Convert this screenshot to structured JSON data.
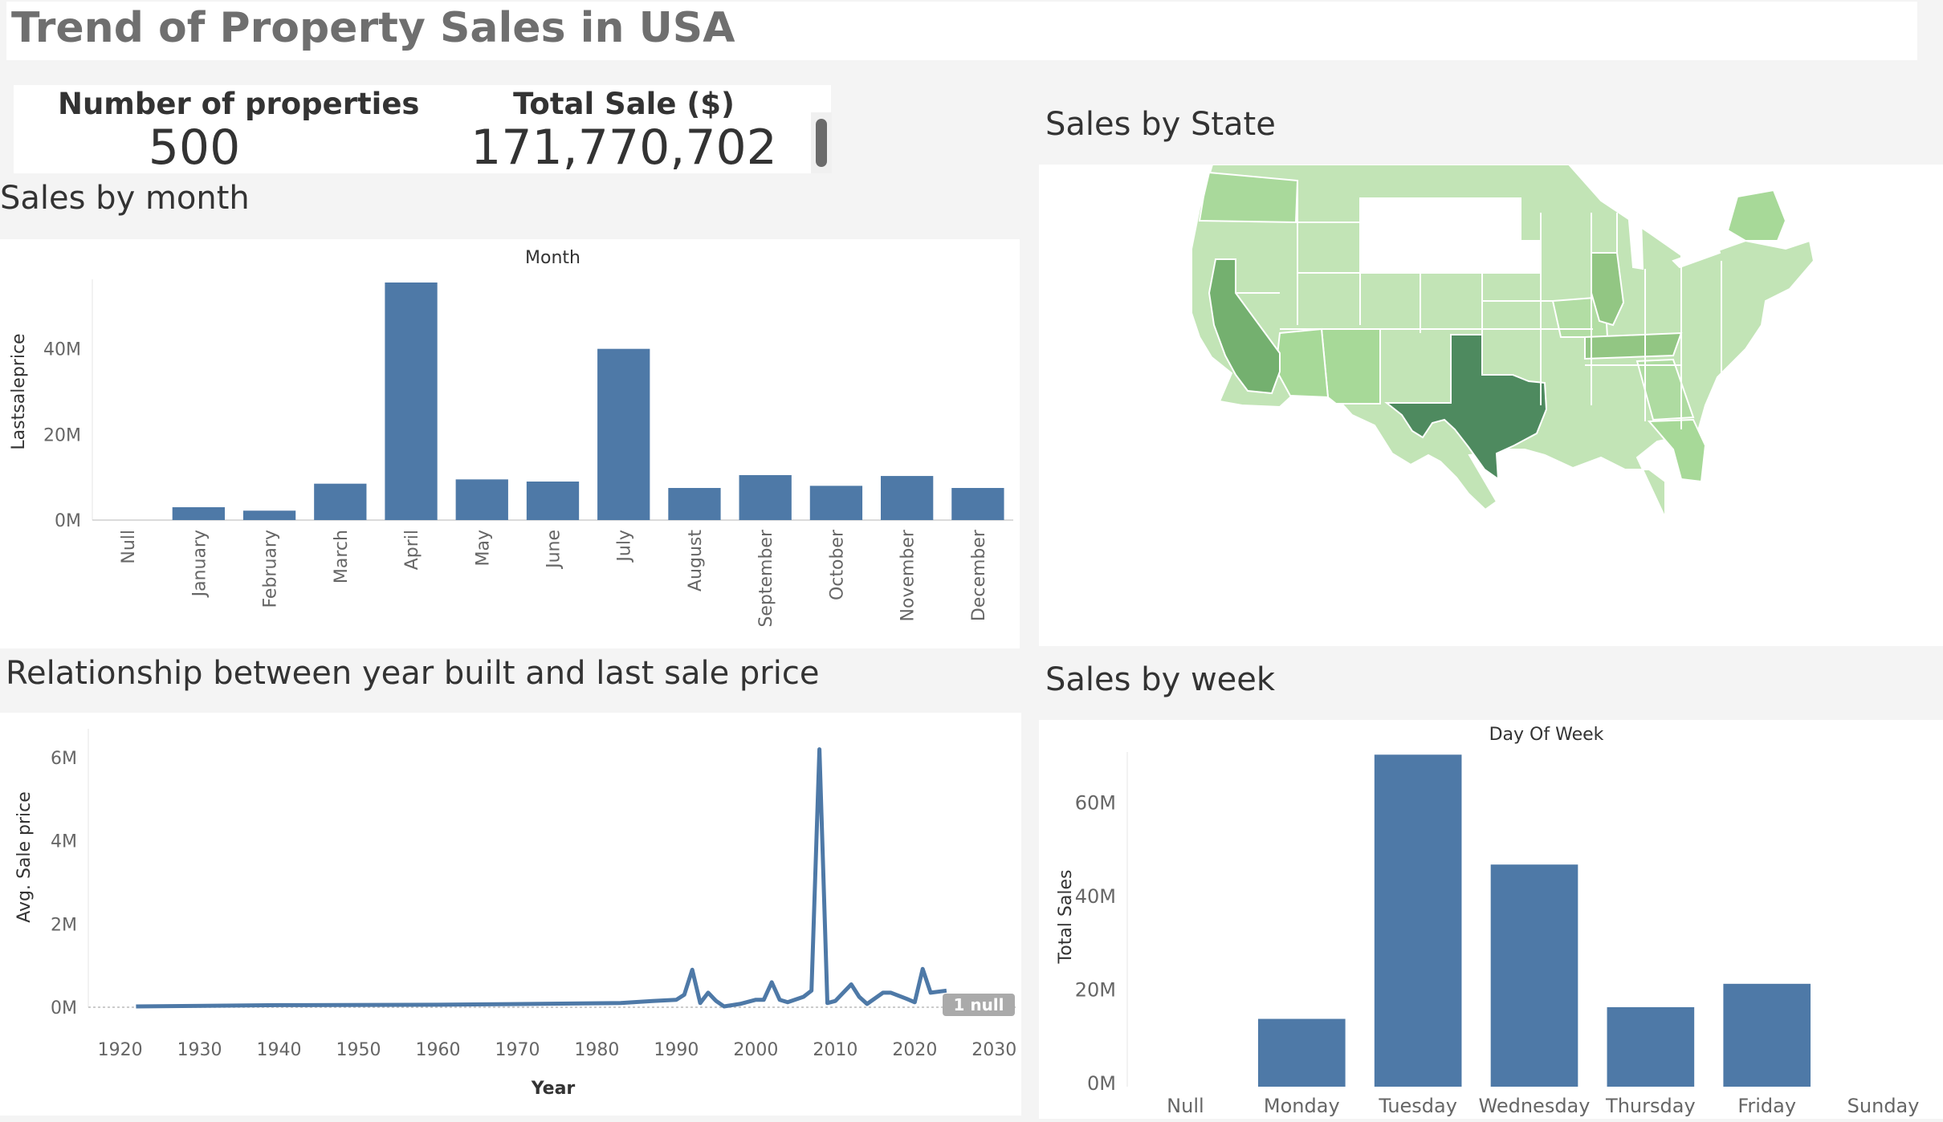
{
  "dashboard": {
    "title": "Trend of Property Sales in USA",
    "kpis": [
      {
        "label": "Number of properties",
        "value": "500"
      },
      {
        "label": "Total Sale ($)",
        "value": "171,770,702"
      }
    ]
  },
  "sections": {
    "month": "Sales by month",
    "state": "Sales by State",
    "year": "Relationship between year built and last sale price",
    "week": "Sales by week"
  },
  "colors": {
    "bar": "#4e79a7",
    "map_dark": "#4e8a5f",
    "map_mid": "#74b06f",
    "map_light": "#c2e4b6",
    "null_badge": "#aaaaaa"
  },
  "chart_data": [
    {
      "id": "month",
      "type": "bar",
      "title": "Month",
      "ylabel": "Lastsaleprice",
      "categories": [
        "Null",
        "January",
        "February",
        "March",
        "April",
        "May",
        "June",
        "July",
        "August",
        "September",
        "October",
        "November",
        "December"
      ],
      "values": [
        0,
        3.0,
        2.2,
        8.5,
        55.5,
        9.5,
        9.0,
        40.0,
        7.5,
        10.5,
        8.0,
        10.3,
        7.5
      ],
      "unit": "M",
      "ylim": [
        0,
        60
      ],
      "yticks": [
        0,
        20,
        40
      ],
      "ytick_labels": [
        "0M",
        "20M",
        "40M"
      ]
    },
    {
      "id": "year",
      "type": "line",
      "xlabel": "Year",
      "ylabel": "Avg. Sale price",
      "unit": "M",
      "xlim": [
        1916,
        2033
      ],
      "ylim": [
        0,
        6.5
      ],
      "xticks": [
        1920,
        1930,
        1940,
        1950,
        1960,
        1970,
        1980,
        1990,
        2000,
        2010,
        2020,
        2030
      ],
      "yticks": [
        0,
        2,
        4,
        6
      ],
      "ytick_labels": [
        "0M",
        "2M",
        "4M",
        "6M"
      ],
      "null_label": "1 null",
      "points": [
        [
          1922,
          0.02
        ],
        [
          1940,
          0.05
        ],
        [
          1960,
          0.06
        ],
        [
          1983,
          0.1
        ],
        [
          1987,
          0.15
        ],
        [
          1990,
          0.18
        ],
        [
          1991,
          0.3
        ],
        [
          1992,
          0.9
        ],
        [
          1993,
          0.1
        ],
        [
          1994,
          0.35
        ],
        [
          1995,
          0.15
        ],
        [
          1996,
          0.02
        ],
        [
          1998,
          0.08
        ],
        [
          2000,
          0.18
        ],
        [
          2001,
          0.18
        ],
        [
          2002,
          0.6
        ],
        [
          2003,
          0.18
        ],
        [
          2004,
          0.12
        ],
        [
          2006,
          0.25
        ],
        [
          2007,
          0.4
        ],
        [
          2008,
          6.2
        ],
        [
          2009,
          0.1
        ],
        [
          2010,
          0.15
        ],
        [
          2012,
          0.55
        ],
        [
          2013,
          0.25
        ],
        [
          2014,
          0.08
        ],
        [
          2016,
          0.35
        ],
        [
          2017,
          0.35
        ],
        [
          2019,
          0.2
        ],
        [
          2020,
          0.12
        ],
        [
          2021,
          0.92
        ],
        [
          2022,
          0.35
        ],
        [
          2024,
          0.4
        ]
      ]
    },
    {
      "id": "week",
      "type": "bar",
      "title": "Day Of Week",
      "ylabel": "Total Sales",
      "categories": [
        "Null",
        "Monday",
        "Tuesday",
        "Wednesday",
        "Thursday",
        "Friday",
        "Sunday"
      ],
      "values": [
        0,
        14.5,
        71,
        47.5,
        17,
        22,
        0
      ],
      "unit": "M",
      "ylim": [
        0,
        75
      ],
      "yticks": [
        0,
        20,
        40,
        60
      ],
      "ytick_labels": [
        "0M",
        "20M",
        "40M",
        "60M"
      ]
    },
    {
      "id": "state",
      "type": "heatmap",
      "subtype": "choropleth",
      "region": "USA",
      "highest": "Texas",
      "high": [
        "California",
        "Tennessee",
        "Illinois"
      ],
      "no_data": [
        "Wyoming",
        "South Dakota"
      ]
    }
  ]
}
